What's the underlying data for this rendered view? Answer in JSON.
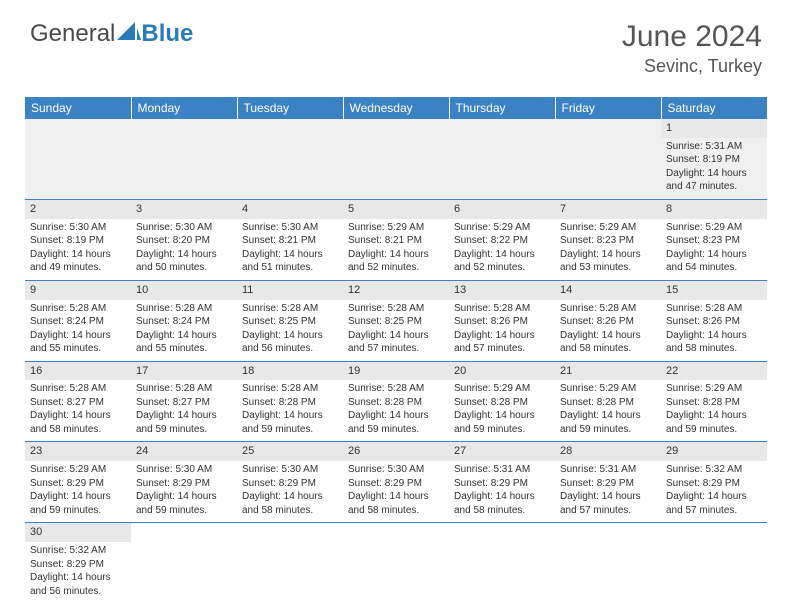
{
  "logo": {
    "text1": "General",
    "text2": "Blue"
  },
  "title": "June 2024",
  "location": "Sevinc, Turkey",
  "colors": {
    "header_bg": "#3b82c4",
    "header_text": "#ffffff",
    "daynum_bg": "#e8e8e8",
    "cell_border": "#3b82c4",
    "logo_blue": "#2b7bb9"
  },
  "weekdays": [
    "Sunday",
    "Monday",
    "Tuesday",
    "Wednesday",
    "Thursday",
    "Friday",
    "Saturday"
  ],
  "weeks": [
    [
      null,
      null,
      null,
      null,
      null,
      null,
      {
        "d": "1",
        "r": "5:31 AM",
        "s": "8:19 PM",
        "h": "14",
        "m": "47"
      }
    ],
    [
      {
        "d": "2",
        "r": "5:30 AM",
        "s": "8:19 PM",
        "h": "14",
        "m": "49"
      },
      {
        "d": "3",
        "r": "5:30 AM",
        "s": "8:20 PM",
        "h": "14",
        "m": "50"
      },
      {
        "d": "4",
        "r": "5:30 AM",
        "s": "8:21 PM",
        "h": "14",
        "m": "51"
      },
      {
        "d": "5",
        "r": "5:29 AM",
        "s": "8:21 PM",
        "h": "14",
        "m": "52"
      },
      {
        "d": "6",
        "r": "5:29 AM",
        "s": "8:22 PM",
        "h": "14",
        "m": "52"
      },
      {
        "d": "7",
        "r": "5:29 AM",
        "s": "8:23 PM",
        "h": "14",
        "m": "53"
      },
      {
        "d": "8",
        "r": "5:29 AM",
        "s": "8:23 PM",
        "h": "14",
        "m": "54"
      }
    ],
    [
      {
        "d": "9",
        "r": "5:28 AM",
        "s": "8:24 PM",
        "h": "14",
        "m": "55"
      },
      {
        "d": "10",
        "r": "5:28 AM",
        "s": "8:24 PM",
        "h": "14",
        "m": "55"
      },
      {
        "d": "11",
        "r": "5:28 AM",
        "s": "8:25 PM",
        "h": "14",
        "m": "56"
      },
      {
        "d": "12",
        "r": "5:28 AM",
        "s": "8:25 PM",
        "h": "14",
        "m": "57"
      },
      {
        "d": "13",
        "r": "5:28 AM",
        "s": "8:26 PM",
        "h": "14",
        "m": "57"
      },
      {
        "d": "14",
        "r": "5:28 AM",
        "s": "8:26 PM",
        "h": "14",
        "m": "58"
      },
      {
        "d": "15",
        "r": "5:28 AM",
        "s": "8:26 PM",
        "h": "14",
        "m": "58"
      }
    ],
    [
      {
        "d": "16",
        "r": "5:28 AM",
        "s": "8:27 PM",
        "h": "14",
        "m": "58"
      },
      {
        "d": "17",
        "r": "5:28 AM",
        "s": "8:27 PM",
        "h": "14",
        "m": "59"
      },
      {
        "d": "18",
        "r": "5:28 AM",
        "s": "8:28 PM",
        "h": "14",
        "m": "59"
      },
      {
        "d": "19",
        "r": "5:28 AM",
        "s": "8:28 PM",
        "h": "14",
        "m": "59"
      },
      {
        "d": "20",
        "r": "5:29 AM",
        "s": "8:28 PM",
        "h": "14",
        "m": "59"
      },
      {
        "d": "21",
        "r": "5:29 AM",
        "s": "8:28 PM",
        "h": "14",
        "m": "59"
      },
      {
        "d": "22",
        "r": "5:29 AM",
        "s": "8:28 PM",
        "h": "14",
        "m": "59"
      }
    ],
    [
      {
        "d": "23",
        "r": "5:29 AM",
        "s": "8:29 PM",
        "h": "14",
        "m": "59"
      },
      {
        "d": "24",
        "r": "5:30 AM",
        "s": "8:29 PM",
        "h": "14",
        "m": "59"
      },
      {
        "d": "25",
        "r": "5:30 AM",
        "s": "8:29 PM",
        "h": "14",
        "m": "58"
      },
      {
        "d": "26",
        "r": "5:30 AM",
        "s": "8:29 PM",
        "h": "14",
        "m": "58"
      },
      {
        "d": "27",
        "r": "5:31 AM",
        "s": "8:29 PM",
        "h": "14",
        "m": "58"
      },
      {
        "d": "28",
        "r": "5:31 AM",
        "s": "8:29 PM",
        "h": "14",
        "m": "57"
      },
      {
        "d": "29",
        "r": "5:32 AM",
        "s": "8:29 PM",
        "h": "14",
        "m": "57"
      }
    ],
    [
      {
        "d": "30",
        "r": "5:32 AM",
        "s": "8:29 PM",
        "h": "14",
        "m": "56"
      },
      null,
      null,
      null,
      null,
      null,
      null
    ]
  ],
  "labels": {
    "sunrise": "Sunrise: ",
    "sunset": "Sunset: ",
    "daylight1": "Daylight: ",
    "daylight2": " hours",
    "daylight3": "and ",
    "daylight4": " minutes."
  }
}
